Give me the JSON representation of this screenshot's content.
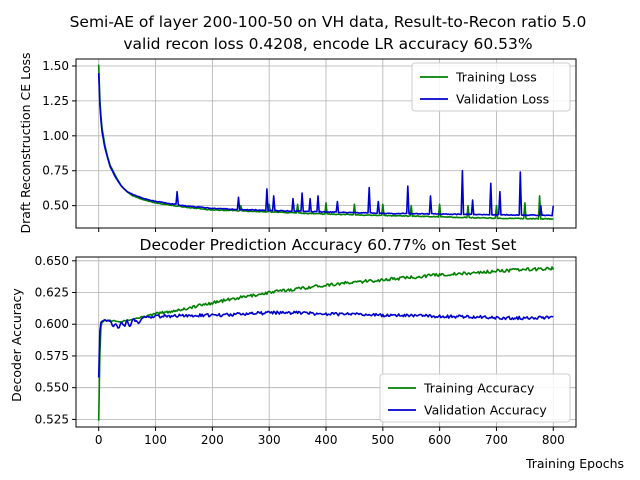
{
  "figure": {
    "title_line1": "Semi-AE of layer 200-100-50 on VH data, Result-to-Recon ratio 5.0",
    "title_line2": "valid recon loss 0.4208, encode LR accuracy 60.53%"
  },
  "chart_data": [
    {
      "type": "line",
      "title": "",
      "xlabel": "",
      "ylabel": "Draft Reconstruction CE Loss",
      "xlim": [
        -40,
        840
      ],
      "ylim": [
        0.34,
        1.55
      ],
      "xticks": [
        0,
        100,
        200,
        300,
        400,
        500,
        600,
        700,
        800
      ],
      "yticks": [
        0.5,
        0.75,
        1.0,
        1.25,
        1.5
      ],
      "ytick_labels": [
        "0.50",
        "0.75",
        "1.00",
        "1.25",
        "1.50"
      ],
      "grid": true,
      "legend": "top-right",
      "series": [
        {
          "name": "Training Loss",
          "color": "#008000",
          "x": [
            0,
            2,
            5,
            10,
            15,
            20,
            30,
            40,
            50,
            60,
            80,
            100,
            150,
            200,
            300,
            400,
            500,
            600,
            700,
            800
          ],
          "y": [
            1.51,
            1.25,
            1.08,
            0.95,
            0.86,
            0.79,
            0.71,
            0.64,
            0.6,
            0.57,
            0.54,
            0.52,
            0.49,
            0.47,
            0.455,
            0.44,
            0.43,
            0.42,
            0.41,
            0.405
          ],
          "spikes": [
            [
              250,
              0.5
            ],
            [
              300,
              0.51
            ],
            [
              350,
              0.51
            ],
            [
              400,
              0.52
            ],
            [
              450,
              0.51
            ],
            [
              500,
              0.51
            ],
            [
              550,
              0.5
            ],
            [
              600,
              0.51
            ],
            [
              650,
              0.5
            ],
            [
              700,
              0.5
            ],
            [
              750,
              0.52
            ],
            [
              775,
              0.57
            ]
          ]
        },
        {
          "name": "Validation Loss",
          "color": "#0000cc",
          "x": [
            0,
            2,
            5,
            10,
            15,
            20,
            30,
            40,
            50,
            60,
            80,
            100,
            150,
            200,
            300,
            400,
            500,
            600,
            700,
            800
          ],
          "y": [
            1.45,
            1.22,
            1.05,
            0.93,
            0.85,
            0.78,
            0.7,
            0.64,
            0.6,
            0.58,
            0.55,
            0.53,
            0.5,
            0.48,
            0.465,
            0.455,
            0.445,
            0.44,
            0.435,
            0.43
          ],
          "spikes": [
            [
              137,
              0.6
            ],
            [
              245,
              0.56
            ],
            [
              295,
              0.62
            ],
            [
              307,
              0.57
            ],
            [
              342,
              0.55
            ],
            [
              358,
              0.59
            ],
            [
              372,
              0.55
            ],
            [
              386,
              0.57
            ],
            [
              420,
              0.53
            ],
            [
              476,
              0.63
            ],
            [
              492,
              0.53
            ],
            [
              543,
              0.64
            ],
            [
              583,
              0.57
            ],
            [
              640,
              0.75
            ],
            [
              658,
              0.54
            ],
            [
              690,
              0.66
            ],
            [
              705,
              0.6
            ],
            [
              741,
              0.74
            ],
            [
              778,
              0.5
            ],
            [
              800,
              0.5
            ]
          ]
        }
      ]
    },
    {
      "type": "line",
      "title": "Decoder Prediction Accuracy 60.77% on Test Set",
      "xlabel": "Training Epochs",
      "ylabel": "Decoder Accuracy",
      "xlim": [
        -40,
        840
      ],
      "ylim": [
        0.519,
        0.653
      ],
      "xticks": [
        0,
        100,
        200,
        300,
        400,
        500,
        600,
        700,
        800
      ],
      "xtick_labels": [
        "0",
        "100",
        "200",
        "300",
        "400",
        "500",
        "600",
        "700",
        "800"
      ],
      "yticks": [
        0.525,
        0.55,
        0.575,
        0.6,
        0.625,
        0.65
      ],
      "ytick_labels": [
        "0.525",
        "0.550",
        "0.575",
        "0.600",
        "0.625",
        "0.650"
      ],
      "grid": true,
      "legend": "bottom-right",
      "series": [
        {
          "name": "Training Accuracy",
          "color": "#008000",
          "x": [
            0,
            1,
            3,
            5,
            10,
            20,
            30,
            40,
            50,
            60,
            80,
            100,
            150,
            200,
            250,
            300,
            350,
            400,
            450,
            500,
            550,
            600,
            650,
            700,
            750,
            800
          ],
          "y": [
            0.524,
            0.56,
            0.595,
            0.602,
            0.603,
            0.603,
            0.603,
            0.602,
            0.603,
            0.604,
            0.606,
            0.608,
            0.612,
            0.617,
            0.621,
            0.625,
            0.628,
            0.631,
            0.633,
            0.635,
            0.637,
            0.639,
            0.64,
            0.642,
            0.643,
            0.644
          ]
        },
        {
          "name": "Validation Accuracy",
          "color": "#0000cc",
          "x": [
            0,
            1,
            3,
            5,
            10,
            20,
            25,
            30,
            35,
            40,
            45,
            50,
            55,
            60,
            70,
            80,
            100,
            150,
            200,
            250,
            300,
            350,
            400,
            450,
            500,
            550,
            600,
            650,
            700,
            750,
            800
          ],
          "y": [
            0.558,
            0.59,
            0.6,
            0.603,
            0.603,
            0.603,
            0.598,
            0.6,
            0.596,
            0.602,
            0.598,
            0.603,
            0.597,
            0.604,
            0.601,
            0.606,
            0.606,
            0.607,
            0.607,
            0.608,
            0.609,
            0.609,
            0.608,
            0.608,
            0.607,
            0.607,
            0.606,
            0.606,
            0.605,
            0.605,
            0.605
          ]
        }
      ]
    }
  ]
}
